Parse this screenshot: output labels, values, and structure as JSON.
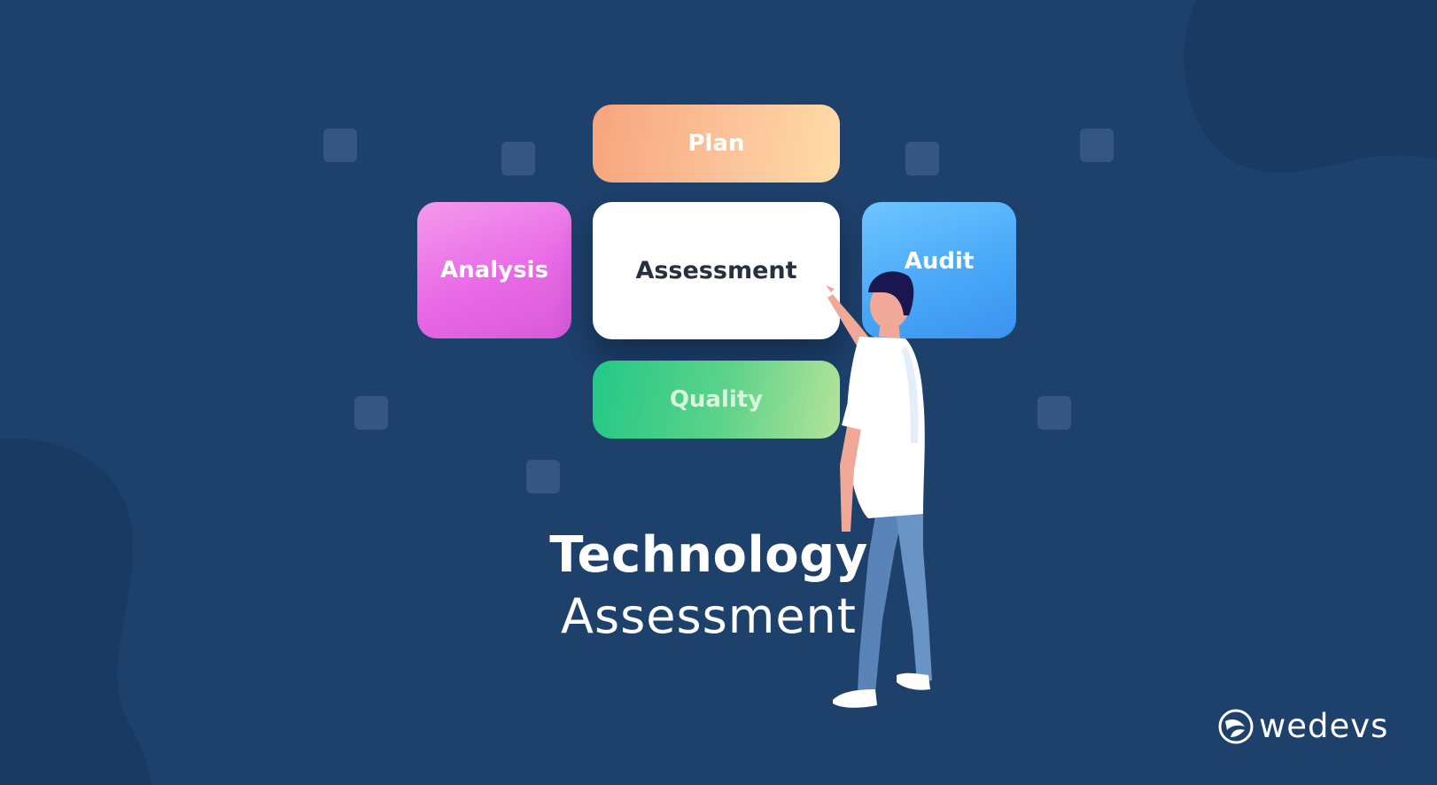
{
  "cards": {
    "plan": "Plan",
    "analysis": "Analysis",
    "assessment": "Assessment",
    "audit": "Audit",
    "quality": "Quality"
  },
  "title": {
    "main": "Technology",
    "sub": "Assessment"
  },
  "logo": {
    "text": "wedevs",
    "icon": "wedevs-logo-icon"
  },
  "colors": {
    "background": "#1e416c",
    "plan": "#fbc39a",
    "analysis": "#e96ae6",
    "audit": "#4aa8f7",
    "quality": "#60d38a"
  }
}
